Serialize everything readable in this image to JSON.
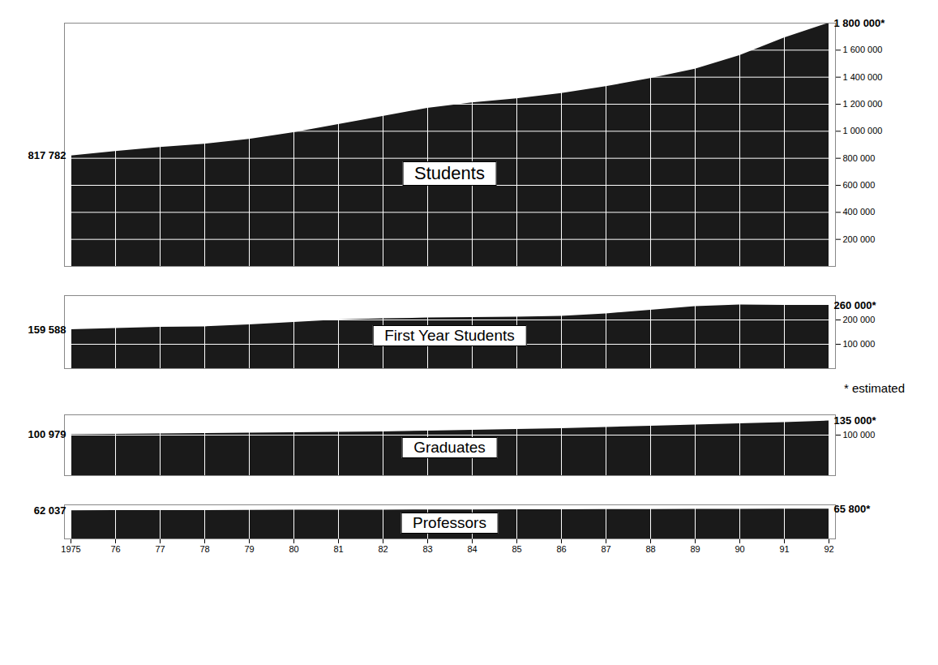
{
  "chart_data": [
    {
      "type": "area",
      "title": "Students",
      "color": "#1a1a1a",
      "categories": [
        "1975",
        "76",
        "77",
        "78",
        "79",
        "80",
        "81",
        "82",
        "83",
        "84",
        "85",
        "86",
        "87",
        "88",
        "89",
        "90",
        "91",
        "92"
      ],
      "values": [
        817782,
        850000,
        880000,
        905000,
        940000,
        990000,
        1050000,
        1110000,
        1170000,
        1210000,
        1240000,
        1280000,
        1330000,
        1390000,
        1460000,
        1560000,
        1690000,
        1800000
      ],
      "data_labels": true,
      "value_labels": [
        "817 782",
        null,
        null,
        null,
        null,
        null,
        null,
        null,
        null,
        null,
        null,
        null,
        null,
        null,
        null,
        null,
        null,
        "1 800 000*"
      ],
      "ylim": [
        0,
        1800000
      ],
      "yticks": [
        {
          "value": 200000,
          "label": "200 000"
        },
        {
          "value": 400000,
          "label": "400 000"
        },
        {
          "value": 600000,
          "label": "600 000"
        },
        {
          "value": 800000,
          "label": "800 000"
        },
        {
          "value": 1000000,
          "label": "1 000 000"
        },
        {
          "value": 1200000,
          "label": "1 200 000"
        },
        {
          "value": 1400000,
          "label": "1 400 000"
        },
        {
          "value": 1600000,
          "label": "1 600 000"
        }
      ],
      "grid": true,
      "tick_labels": "y"
    },
    {
      "type": "area",
      "title": "First Year Students",
      "color": "#1a1a1a",
      "categories": [
        "1975",
        "76",
        "77",
        "78",
        "79",
        "80",
        "81",
        "82",
        "83",
        "84",
        "85",
        "86",
        "87",
        "88",
        "89",
        "90",
        "91",
        "92"
      ],
      "values": [
        159588,
        165000,
        170000,
        172000,
        180000,
        190000,
        200000,
        205000,
        208000,
        210000,
        212000,
        215000,
        225000,
        240000,
        255000,
        262000,
        260000,
        260000
      ],
      "data_labels": true,
      "value_labels": [
        "159 588",
        null,
        null,
        null,
        null,
        null,
        null,
        null,
        null,
        null,
        null,
        null,
        null,
        null,
        null,
        null,
        null,
        "260 000*"
      ],
      "ylim": [
        0,
        300000
      ],
      "yticks": [
        {
          "value": 100000,
          "label": "100 000"
        },
        {
          "value": 200000,
          "label": "200 000"
        }
      ],
      "annotations": [
        "* estimated"
      ],
      "grid": true,
      "tick_labels": "y"
    },
    {
      "type": "area",
      "title": "Graduates",
      "color": "#1a1a1a",
      "categories": [
        "1975",
        "76",
        "77",
        "78",
        "79",
        "80",
        "81",
        "82",
        "83",
        "84",
        "85",
        "86",
        "87",
        "88",
        "89",
        "90",
        "91",
        "92"
      ],
      "values": [
        100979,
        102000,
        103000,
        104000,
        105000,
        106000,
        107000,
        108000,
        110000,
        112000,
        114000,
        116000,
        119000,
        122000,
        125000,
        128000,
        131000,
        135000
      ],
      "data_labels": true,
      "value_labels": [
        "100 979",
        null,
        null,
        null,
        null,
        null,
        null,
        null,
        null,
        null,
        null,
        null,
        null,
        null,
        null,
        null,
        null,
        "135 000*"
      ],
      "ylim": [
        0,
        150000
      ],
      "yticks": [
        {
          "value": 100000,
          "label": "100 000"
        }
      ],
      "grid": true,
      "tick_labels": "y"
    },
    {
      "type": "area",
      "title": "Professors",
      "color": "#1a1a1a",
      "categories": [
        "1975",
        "76",
        "77",
        "78",
        "79",
        "80",
        "81",
        "82",
        "83",
        "84",
        "85",
        "86",
        "87",
        "88",
        "89",
        "90",
        "91",
        "92"
      ],
      "values": [
        62037,
        62300,
        62500,
        62700,
        63000,
        63200,
        63400,
        63600,
        63800,
        64000,
        64200,
        64400,
        64600,
        64800,
        65000,
        65300,
        65600,
        65800
      ],
      "data_labels": true,
      "value_labels": [
        "62 037",
        null,
        null,
        null,
        null,
        null,
        null,
        null,
        null,
        null,
        null,
        null,
        null,
        null,
        null,
        null,
        null,
        "65 800*"
      ],
      "ylim": [
        0,
        75000
      ],
      "yticks": [],
      "grid": true,
      "tick_labels": "x"
    }
  ]
}
